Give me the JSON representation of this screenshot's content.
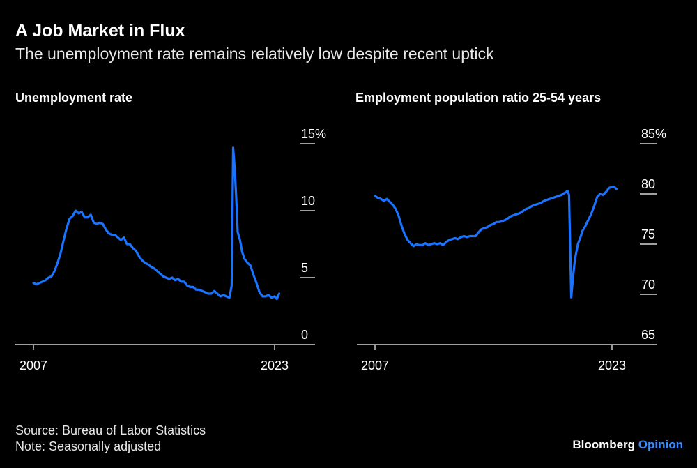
{
  "header": {
    "title": "A Job Market in Flux",
    "subtitle": "The unemployment rate remains relatively low despite recent uptick"
  },
  "footer": {
    "source": "Source: Bureau of Labor Statistics",
    "note": "Note: Seasonally adjusted",
    "brand_primary": "Bloomberg",
    "brand_secondary": "Opinion"
  },
  "colors": {
    "line": "#1a73ff",
    "background": "#000000",
    "brand_accent": "#3a8bff"
  },
  "chart_data": [
    {
      "type": "line",
      "title": "Unemployment rate",
      "xlabel": "",
      "ylabel": "",
      "xlim": [
        2007,
        2023.5
      ],
      "ylim": [
        0,
        15
      ],
      "yticks": [
        0,
        5,
        10,
        15
      ],
      "ytick_labels": [
        "0",
        "5",
        "10",
        "15%"
      ],
      "xticks": [
        2007,
        2023
      ],
      "xtick_labels": [
        "2007",
        "2023"
      ],
      "grid": false,
      "series": [
        {
          "values": [
            [
              2007.0,
              4.6
            ],
            [
              2007.2,
              4.5
            ],
            [
              2007.4,
              4.6
            ],
            [
              2007.6,
              4.7
            ],
            [
              2007.8,
              4.8
            ],
            [
              2008.0,
              5.0
            ],
            [
              2008.2,
              5.1
            ],
            [
              2008.4,
              5.5
            ],
            [
              2008.6,
              6.1
            ],
            [
              2008.8,
              6.8
            ],
            [
              2009.0,
              7.8
            ],
            [
              2009.2,
              8.7
            ],
            [
              2009.4,
              9.4
            ],
            [
              2009.6,
              9.6
            ],
            [
              2009.8,
              10.0
            ],
            [
              2010.0,
              9.8
            ],
            [
              2010.2,
              9.9
            ],
            [
              2010.4,
              9.5
            ],
            [
              2010.6,
              9.5
            ],
            [
              2010.8,
              9.7
            ],
            [
              2011.0,
              9.1
            ],
            [
              2011.2,
              9.0
            ],
            [
              2011.4,
              9.1
            ],
            [
              2011.6,
              9.0
            ],
            [
              2011.8,
              8.6
            ],
            [
              2012.0,
              8.3
            ],
            [
              2012.2,
              8.2
            ],
            [
              2012.4,
              8.2
            ],
            [
              2012.6,
              8.0
            ],
            [
              2012.8,
              7.8
            ],
            [
              2013.0,
              8.0
            ],
            [
              2013.2,
              7.5
            ],
            [
              2013.4,
              7.5
            ],
            [
              2013.6,
              7.2
            ],
            [
              2013.8,
              7.0
            ],
            [
              2014.0,
              6.6
            ],
            [
              2014.2,
              6.3
            ],
            [
              2014.4,
              6.1
            ],
            [
              2014.6,
              6.0
            ],
            [
              2014.8,
              5.8
            ],
            [
              2015.0,
              5.7
            ],
            [
              2015.2,
              5.5
            ],
            [
              2015.4,
              5.3
            ],
            [
              2015.6,
              5.1
            ],
            [
              2015.8,
              5.0
            ],
            [
              2016.0,
              4.9
            ],
            [
              2016.2,
              5.0
            ],
            [
              2016.4,
              4.8
            ],
            [
              2016.6,
              4.9
            ],
            [
              2016.8,
              4.7
            ],
            [
              2017.0,
              4.7
            ],
            [
              2017.2,
              4.4
            ],
            [
              2017.4,
              4.3
            ],
            [
              2017.6,
              4.3
            ],
            [
              2017.8,
              4.1
            ],
            [
              2018.0,
              4.1
            ],
            [
              2018.2,
              4.0
            ],
            [
              2018.4,
              3.9
            ],
            [
              2018.6,
              3.8
            ],
            [
              2018.8,
              3.8
            ],
            [
              2019.0,
              4.0
            ],
            [
              2019.2,
              3.8
            ],
            [
              2019.4,
              3.6
            ],
            [
              2019.6,
              3.7
            ],
            [
              2019.8,
              3.6
            ],
            [
              2020.0,
              3.5
            ],
            [
              2020.15,
              4.4
            ],
            [
              2020.25,
              14.7
            ],
            [
              2020.35,
              13.2
            ],
            [
              2020.45,
              11.0
            ],
            [
              2020.55,
              8.4
            ],
            [
              2020.7,
              7.8
            ],
            [
              2020.85,
              6.9
            ],
            [
              2021.0,
              6.4
            ],
            [
              2021.2,
              6.1
            ],
            [
              2021.4,
              5.9
            ],
            [
              2021.6,
              5.2
            ],
            [
              2021.8,
              4.6
            ],
            [
              2022.0,
              3.9
            ],
            [
              2022.2,
              3.6
            ],
            [
              2022.4,
              3.6
            ],
            [
              2022.6,
              3.7
            ],
            [
              2022.8,
              3.5
            ],
            [
              2023.0,
              3.6
            ],
            [
              2023.15,
              3.4
            ],
            [
              2023.3,
              3.8
            ]
          ]
        }
      ]
    },
    {
      "type": "line",
      "title": "Employment population ratio 25-54 years",
      "xlabel": "",
      "ylabel": "",
      "xlim": [
        2007,
        2023.5
      ],
      "ylim": [
        65,
        85
      ],
      "yticks": [
        65,
        70,
        75,
        80,
        85
      ],
      "ytick_labels": [
        "65",
        "70",
        "75",
        "80",
        "85%"
      ],
      "xticks": [
        2007,
        2023
      ],
      "xtick_labels": [
        "2007",
        "2023"
      ],
      "grid": false,
      "series": [
        {
          "values": [
            [
              2007.0,
              79.8
            ],
            [
              2007.2,
              79.6
            ],
            [
              2007.4,
              79.5
            ],
            [
              2007.6,
              79.3
            ],
            [
              2007.8,
              79.5
            ],
            [
              2008.0,
              79.2
            ],
            [
              2008.2,
              78.9
            ],
            [
              2008.4,
              78.5
            ],
            [
              2008.6,
              77.8
            ],
            [
              2008.8,
              76.8
            ],
            [
              2009.0,
              76.0
            ],
            [
              2009.2,
              75.4
            ],
            [
              2009.4,
              75.1
            ],
            [
              2009.6,
              74.8
            ],
            [
              2009.8,
              75.0
            ],
            [
              2010.0,
              74.9
            ],
            [
              2010.2,
              74.9
            ],
            [
              2010.4,
              75.1
            ],
            [
              2010.6,
              74.9
            ],
            [
              2010.8,
              75.0
            ],
            [
              2011.0,
              75.1
            ],
            [
              2011.2,
              75.0
            ],
            [
              2011.4,
              75.1
            ],
            [
              2011.6,
              74.9
            ],
            [
              2011.8,
              75.2
            ],
            [
              2012.0,
              75.4
            ],
            [
              2012.2,
              75.5
            ],
            [
              2012.4,
              75.6
            ],
            [
              2012.6,
              75.5
            ],
            [
              2012.8,
              75.7
            ],
            [
              2013.0,
              75.8
            ],
            [
              2013.2,
              75.7
            ],
            [
              2013.4,
              75.8
            ],
            [
              2013.6,
              75.8
            ],
            [
              2013.8,
              75.8
            ],
            [
              2014.0,
              76.2
            ],
            [
              2014.2,
              76.5
            ],
            [
              2014.4,
              76.6
            ],
            [
              2014.6,
              76.7
            ],
            [
              2014.8,
              76.9
            ],
            [
              2015.0,
              77.0
            ],
            [
              2015.2,
              77.2
            ],
            [
              2015.4,
              77.2
            ],
            [
              2015.6,
              77.3
            ],
            [
              2015.8,
              77.4
            ],
            [
              2016.0,
              77.6
            ],
            [
              2016.2,
              77.8
            ],
            [
              2016.4,
              77.9
            ],
            [
              2016.6,
              78.0
            ],
            [
              2016.8,
              78.1
            ],
            [
              2017.0,
              78.3
            ],
            [
              2017.2,
              78.5
            ],
            [
              2017.4,
              78.6
            ],
            [
              2017.6,
              78.8
            ],
            [
              2017.8,
              78.9
            ],
            [
              2018.0,
              79.0
            ],
            [
              2018.2,
              79.1
            ],
            [
              2018.4,
              79.3
            ],
            [
              2018.6,
              79.4
            ],
            [
              2018.8,
              79.5
            ],
            [
              2019.0,
              79.6
            ],
            [
              2019.2,
              79.7
            ],
            [
              2019.4,
              79.8
            ],
            [
              2019.6,
              79.9
            ],
            [
              2019.8,
              80.1
            ],
            [
              2020.0,
              80.3
            ],
            [
              2020.1,
              79.9
            ],
            [
              2020.25,
              69.7
            ],
            [
              2020.35,
              71.4
            ],
            [
              2020.5,
              73.5
            ],
            [
              2020.7,
              75.0
            ],
            [
              2020.9,
              75.8
            ],
            [
              2021.0,
              76.3
            ],
            [
              2021.2,
              76.8
            ],
            [
              2021.4,
              77.4
            ],
            [
              2021.6,
              78.0
            ],
            [
              2021.8,
              78.8
            ],
            [
              2022.0,
              79.7
            ],
            [
              2022.2,
              80.0
            ],
            [
              2022.4,
              79.9
            ],
            [
              2022.6,
              80.2
            ],
            [
              2022.8,
              80.6
            ],
            [
              2023.0,
              80.7
            ],
            [
              2023.15,
              80.7
            ],
            [
              2023.3,
              80.5
            ]
          ]
        }
      ]
    }
  ]
}
